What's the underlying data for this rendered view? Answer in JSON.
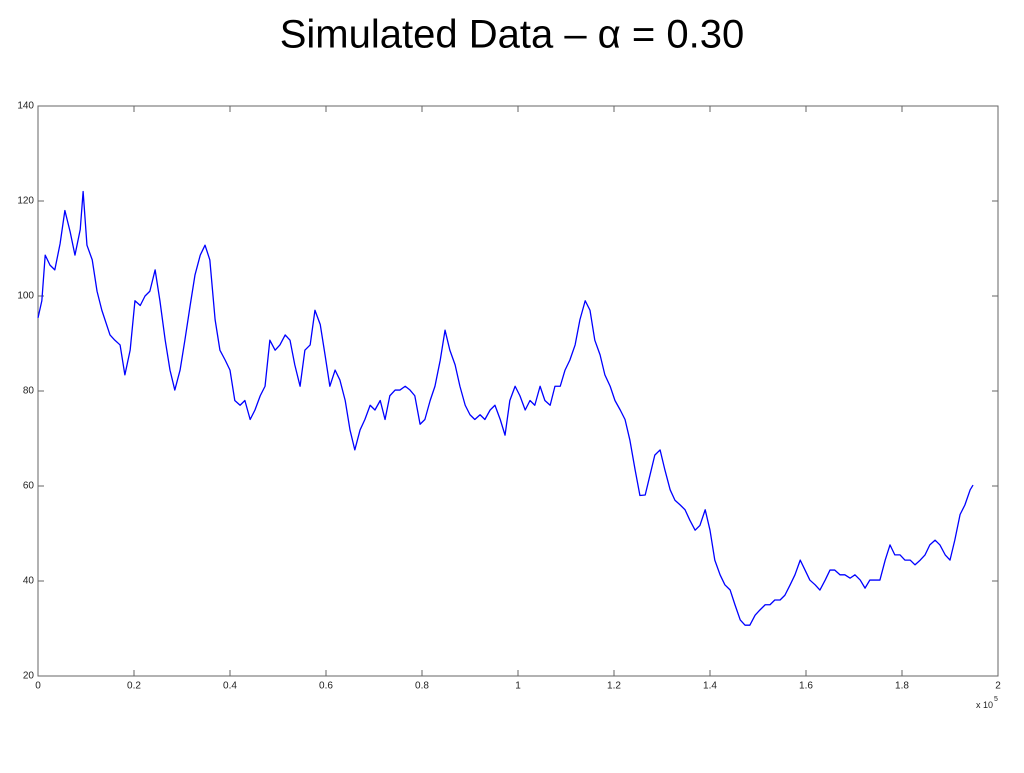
{
  "chart_data": {
    "type": "line",
    "title": "Simulated Data – α = 0.30",
    "color": "#0000ff",
    "grid": false,
    "xlim": [
      0,
      2
    ],
    "ylim": [
      20,
      140
    ],
    "xticks": [
      0,
      0.2,
      0.4,
      0.6,
      0.8,
      1,
      1.2,
      1.4,
      1.6,
      1.8,
      2
    ],
    "yticks": [
      20,
      40,
      60,
      80,
      100,
      120,
      140
    ],
    "x_multiplier": "x 10",
    "x_multiplier_exponent": "5",
    "x": [
      0,
      0.008,
      0.015,
      0.025,
      0.035,
      0.046,
      0.056,
      0.067,
      0.077,
      0.088,
      0.094,
      0.102,
      0.113,
      0.123,
      0.133,
      0.15,
      0.16,
      0.171,
      0.181,
      0.192,
      0.202,
      0.213,
      0.223,
      0.233,
      0.244,
      0.254,
      0.265,
      0.275,
      0.285,
      0.296,
      0.306,
      0.317,
      0.327,
      0.338,
      0.348,
      0.358,
      0.369,
      0.379,
      0.39,
      0.4,
      0.41,
      0.421,
      0.431,
      0.442,
      0.452,
      0.463,
      0.473,
      0.483,
      0.494,
      0.504,
      0.515,
      0.525,
      0.535,
      0.546,
      0.556,
      0.567,
      0.577,
      0.588,
      0.598,
      0.608,
      0.619,
      0.629,
      0.64,
      0.65,
      0.66,
      0.671,
      0.681,
      0.692,
      0.702,
      0.713,
      0.723,
      0.733,
      0.744,
      0.754,
      0.765,
      0.775,
      0.785,
      0.796,
      0.806,
      0.817,
      0.827,
      0.838,
      0.848,
      0.858,
      0.869,
      0.879,
      0.89,
      0.9,
      0.91,
      0.921,
      0.931,
      0.942,
      0.952,
      0.963,
      0.973,
      0.983,
      0.994,
      1.004,
      1.015,
      1.025,
      1.035,
      1.046,
      1.056,
      1.067,
      1.077,
      1.088,
      1.098,
      1.108,
      1.119,
      1.129,
      1.14,
      1.15,
      1.16,
      1.171,
      1.181,
      1.192,
      1.202,
      1.213,
      1.223,
      1.233,
      1.244,
      1.254,
      1.265,
      1.275,
      1.285,
      1.296,
      1.306,
      1.317,
      1.327,
      1.338,
      1.348,
      1.358,
      1.369,
      1.379,
      1.39,
      1.4,
      1.41,
      1.421,
      1.431,
      1.442,
      1.452,
      1.463,
      1.473,
      1.483,
      1.494,
      1.504,
      1.515,
      1.525,
      1.535,
      1.546,
      1.556,
      1.567,
      1.577,
      1.588,
      1.598,
      1.608,
      1.619,
      1.629,
      1.64,
      1.65,
      1.66,
      1.671,
      1.681,
      1.692,
      1.702,
      1.713,
      1.723,
      1.733,
      1.744,
      1.754,
      1.765,
      1.775,
      1.785,
      1.796,
      1.806,
      1.817,
      1.827,
      1.838,
      1.848,
      1.858,
      1.869,
      1.879,
      1.89,
      1.9,
      1.91,
      1.921,
      1.931,
      1.942,
      1.948
    ],
    "values": [
      95.4,
      99,
      108.6,
      106.5,
      105.5,
      111,
      118,
      113.5,
      108.6,
      114,
      122,
      110.7,
      107.6,
      101,
      97,
      91.8,
      90.7,
      89.7,
      83.4,
      88.6,
      99,
      98,
      100,
      101,
      105.5,
      99,
      90.7,
      84.4,
      80.2,
      84.4,
      90.7,
      98,
      104.4,
      108.6,
      110.7,
      107.6,
      95,
      88.6,
      86.5,
      84.4,
      78,
      77,
      78,
      74,
      76,
      79,
      81,
      90.7,
      88.6,
      89.7,
      91.8,
      90.7,
      85.5,
      81,
      88.6,
      89.7,
      97,
      94,
      87.6,
      81,
      84.4,
      82.3,
      78,
      71.8,
      67.6,
      71.8,
      74,
      77,
      76,
      78,
      74,
      79,
      80.2,
      80.2,
      81,
      80.2,
      79,
      73,
      74,
      78,
      81,
      86.5,
      92.8,
      88.6,
      85.5,
      81,
      77,
      75,
      74,
      75,
      74,
      76,
      77,
      74,
      70.7,
      78,
      81,
      79,
      76,
      78,
      77,
      81,
      78,
      77,
      81,
      81,
      84.4,
      86.5,
      89.7,
      95,
      99,
      97,
      90.7,
      87.6,
      83.4,
      81,
      78,
      76,
      74,
      69.7,
      63.4,
      58,
      58.1,
      62.3,
      66.5,
      67.6,
      63.4,
      59.2,
      57,
      56,
      55,
      52.8,
      50.7,
      51.7,
      55,
      50.7,
      44.4,
      41.3,
      39.2,
      38.1,
      35,
      31.8,
      30.7,
      30.7,
      32.8,
      33.9,
      35,
      35,
      36,
      36,
      37,
      39.2,
      41.3,
      44.4,
      42.3,
      40.2,
      39.2,
      38.1,
      40.2,
      42.3,
      42.3,
      41.3,
      41.3,
      40.6,
      41.3,
      40.2,
      38.5,
      40.2,
      40.2,
      40.2,
      44.4,
      47.6,
      45.5,
      45.5,
      44.4,
      44.4,
      43.4,
      44.4,
      45.5,
      47.6,
      48.6,
      47.6,
      45.5,
      44.4,
      48.6,
      54,
      56,
      59.2,
      60.2
    ]
  }
}
